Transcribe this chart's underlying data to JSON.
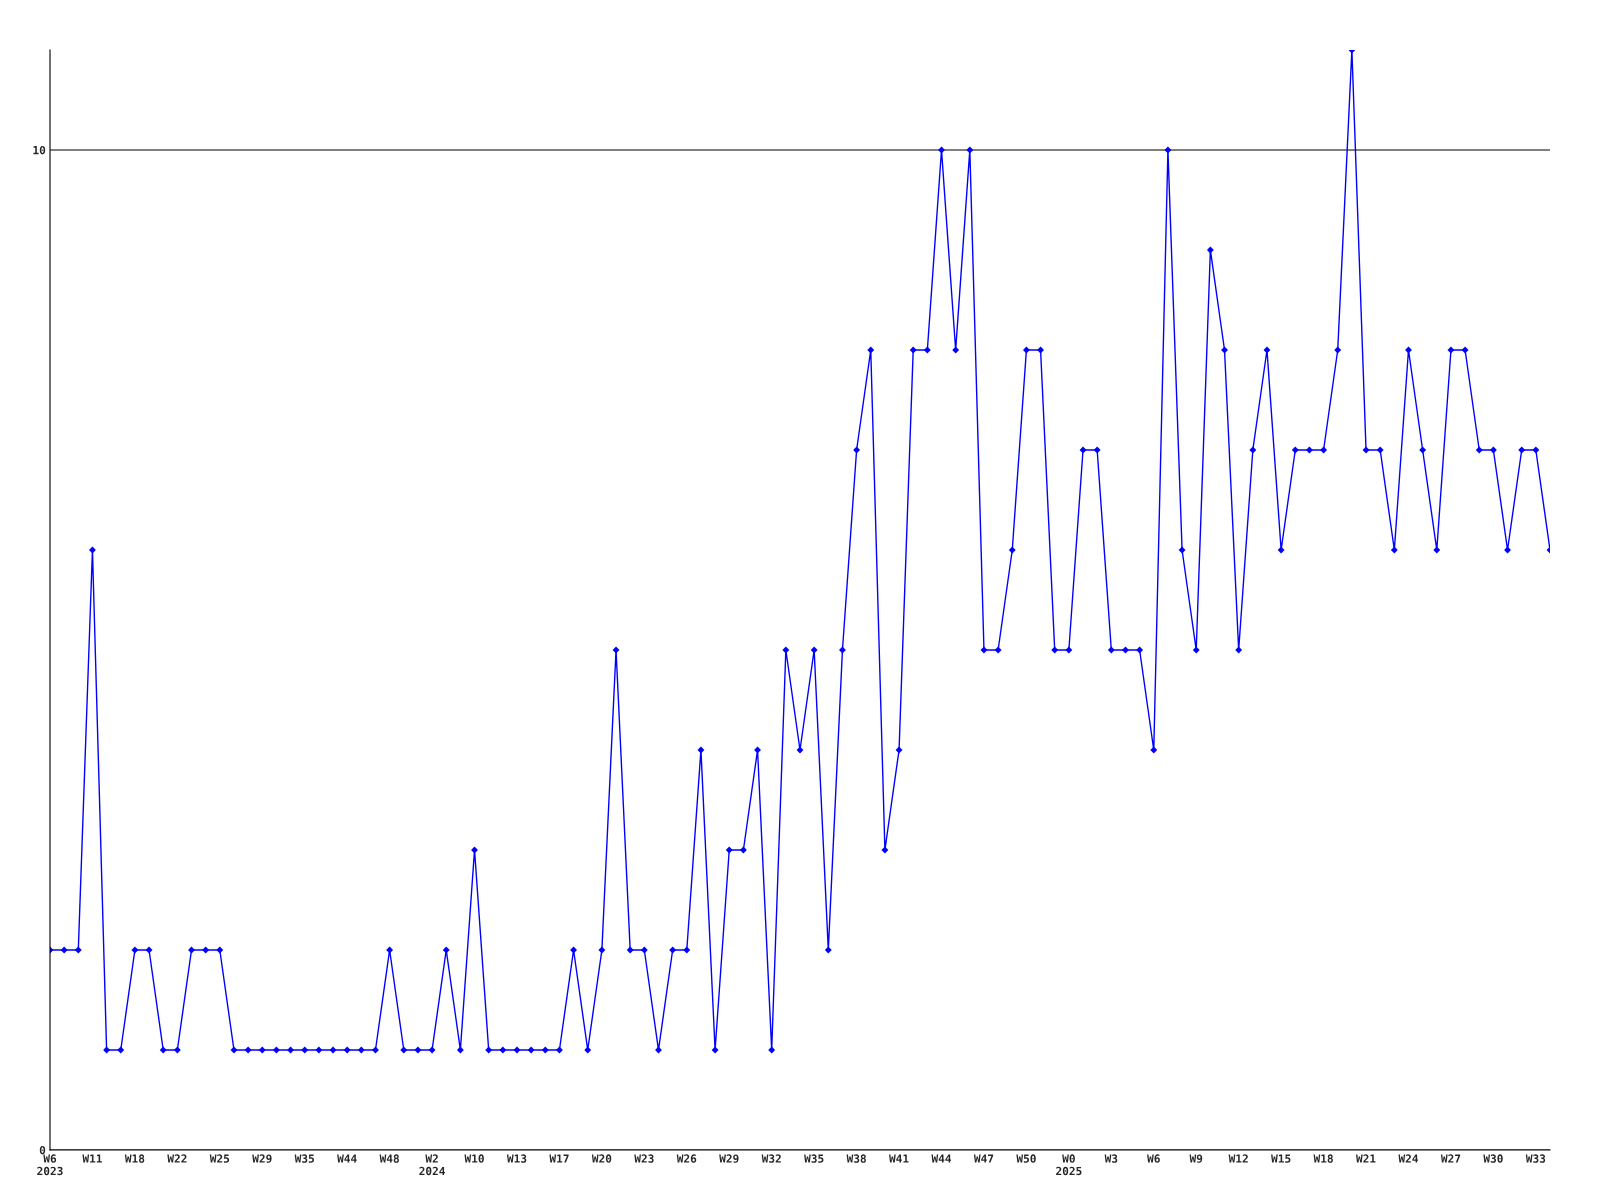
{
  "chart_data": {
    "type": "line",
    "categories": [
      "W6\n2023",
      null,
      null,
      "W11",
      null,
      null,
      "W18",
      null,
      null,
      "W22",
      null,
      null,
      "W25",
      null,
      null,
      "W29",
      null,
      null,
      "W35",
      null,
      null,
      "W44",
      null,
      null,
      "W48",
      null,
      null,
      "W2\n2024",
      null,
      null,
      "W10",
      null,
      null,
      "W13",
      null,
      null,
      "W17",
      null,
      null,
      "W20",
      null,
      null,
      "W23",
      null,
      null,
      "W26",
      null,
      null,
      "W29",
      null,
      null,
      "W32",
      null,
      null,
      "W35",
      null,
      null,
      "W38",
      null,
      null,
      "W41",
      null,
      null,
      "W44",
      null,
      null,
      "W47",
      null,
      null,
      "W50",
      null,
      null,
      "W0\n2025",
      null,
      null,
      "W3",
      null,
      null,
      "W6",
      null,
      null,
      "W9",
      null,
      null,
      "W12",
      null,
      null,
      "W15",
      null,
      null,
      "W18",
      null,
      null,
      "W21",
      null,
      null,
      "W24",
      null,
      null,
      "W27",
      null,
      null,
      "W30",
      null,
      null,
      "W33",
      null
    ],
    "series": [
      {
        "color": "#0000ff",
        "values": [
          2,
          2,
          2,
          6,
          1,
          1,
          2,
          2,
          1,
          1,
          2,
          2,
          2,
          1,
          1,
          1,
          1,
          1,
          1,
          1,
          1,
          1,
          1,
          1,
          2,
          1,
          1,
          1,
          2,
          1,
          3,
          1,
          1,
          1,
          1,
          1,
          1,
          2,
          1,
          2,
          5,
          2,
          2,
          1,
          2,
          2,
          4,
          1,
          3,
          3,
          4,
          1,
          5,
          4,
          5,
          2,
          5,
          7,
          8,
          3,
          4,
          8,
          8,
          10,
          8,
          10,
          5,
          5,
          6,
          8,
          8,
          5,
          5,
          7,
          7,
          5,
          5,
          5,
          4,
          10,
          6,
          5,
          9,
          8,
          5,
          7,
          8,
          6,
          7,
          7,
          7,
          8,
          11,
          7,
          7,
          6,
          8,
          7,
          6,
          8,
          8,
          7,
          7,
          6,
          7,
          7,
          6
        ]
      }
    ],
    "ylim": [
      0,
      11
    ],
    "yticks": [
      0,
      10
    ],
    "grid": "y",
    "marker": "diamond",
    "line_style": "solid"
  }
}
